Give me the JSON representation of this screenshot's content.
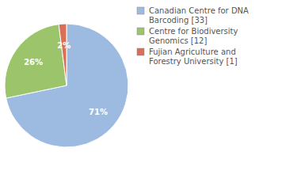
{
  "chart_data": {
    "type": "pie",
    "categories": [
      "Canadian Centre for DNA Barcoding [33]",
      "Centre for Biodiversity Genomics [12]",
      "Fujian Agriculture and Forestry University [1]"
    ],
    "values": [
      71,
      26,
      2
    ],
    "value_labels": [
      "71%",
      "26%",
      "2%"
    ],
    "colors": [
      "#9dbbe0",
      "#9cc46a",
      "#db6e56"
    ],
    "data_labels": true
  }
}
